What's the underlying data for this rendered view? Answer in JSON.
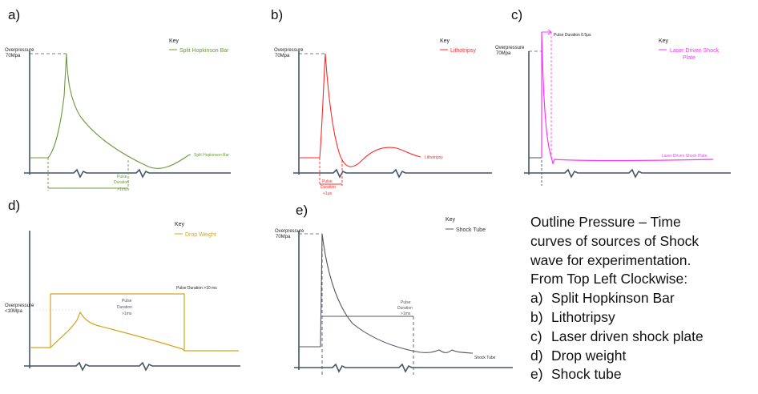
{
  "panels": {
    "a": {
      "letter": "a)",
      "color": "#6a9a3c",
      "overpressure_label": "Overpressure",
      "overpressure_value": "70Mpa",
      "key_title": "Key",
      "key_entry": "Split Hopkinson Bar",
      "curve_label": "Split Hopkinson Bar",
      "pulse_label_1": "Pulse",
      "pulse_label_2": "Duration",
      "pulse_label_3": ">1ms"
    },
    "b": {
      "letter": "b)",
      "color": "#ff2a2a",
      "overpressure_label": "Overpressure",
      "overpressure_value": "70Mpa",
      "key_title": "Key",
      "key_entry": "Lithotripsy",
      "curve_label": "Lithotripsy",
      "pulse_label_1": "Pulse",
      "pulse_label_2": "Duration",
      "pulse_label_3": "<1μs"
    },
    "c": {
      "letter": "c)",
      "color": "#ff33ff",
      "overpressure_label": "Overpressure",
      "overpressure_value": "70Mpa",
      "key_title": "Key",
      "key_entry_1": "Laser Driven Shock",
      "key_entry_2": "Plate",
      "curve_label": "Laser Driven Shock Plate",
      "pulse_label": "Pulse Duration 0.5μs"
    },
    "d": {
      "letter": "d)",
      "color": "#d4a520",
      "overpressure_label": "Overpressure",
      "overpressure_value": "<10Mpa",
      "key_title": "Key",
      "key_entry": "Drop Weight",
      "pulse_label_top": "Pulse Duration >10 ms",
      "pulse_label_1": "Pulse",
      "pulse_label_2": "Duration",
      "pulse_label_3": ">1ms"
    },
    "e": {
      "letter": "e)",
      "color": "#555566",
      "overpressure_label": "Overpressure",
      "overpressure_value": "70Mpa",
      "key_title": "Key",
      "key_entry": "Shock Tube",
      "curve_label": "Shock Tube",
      "pulse_label_1": "Pulse",
      "pulse_label_2": "Duration",
      "pulse_label_3": ">1ms"
    }
  },
  "axis_color": "#44546a",
  "caption": {
    "lines": [
      "Outline Pressure – Time",
      "curves of sources of Shock",
      "wave for experimentation.",
      "From Top Left Clockwise:"
    ],
    "items": [
      {
        "label": "a)",
        "text": "Split Hopkinson Bar"
      },
      {
        "label": "b)",
        "text": "Lithotripsy"
      },
      {
        "label": "c)",
        "text": "Laser driven shock plate"
      },
      {
        "label": "d)",
        "text": "Drop weight"
      },
      {
        "label": "e)",
        "text": "Shock tube"
      }
    ]
  }
}
